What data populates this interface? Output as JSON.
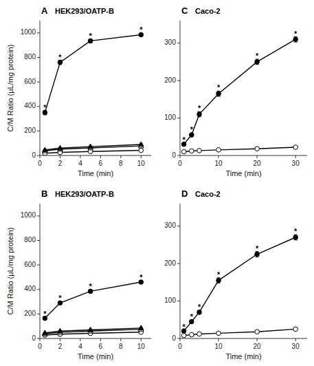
{
  "chart_data": [
    {
      "type": "line",
      "panel_label": "A",
      "title": "HEK293/OATP-B",
      "x": [
        0.5,
        2,
        5,
        10
      ],
      "series": [
        {
          "values": [
            18,
            25,
            32,
            42
          ],
          "errors": [
            3,
            3,
            3,
            3
          ],
          "color": "#000000",
          "marker": "open-circle",
          "line_style": "solid"
        },
        {
          "values": [
            38,
            52,
            62,
            78
          ],
          "errors": [
            4,
            4,
            4,
            4
          ],
          "color": "#000000",
          "marker": "open-triangle",
          "line_style": "solid"
        },
        {
          "values": [
            45,
            60,
            72,
            90
          ],
          "errors": [
            5,
            5,
            5,
            5
          ],
          "color": "#000000",
          "marker": "triangle",
          "line_style": "solid"
        },
        {
          "values": [
            350,
            760,
            935,
            985
          ],
          "errors": [
            18,
            18,
            15,
            12
          ],
          "color": "#000000",
          "marker": "circle",
          "line_style": "solid"
        }
      ],
      "annotations": [
        "*",
        "*",
        "*",
        "*"
      ],
      "xlim": [
        0,
        11
      ],
      "ylim": [
        0,
        1100
      ],
      "xticks": [
        0,
        2,
        4,
        6,
        8,
        10
      ],
      "yticks": [
        0,
        200,
        400,
        600,
        800,
        1000
      ],
      "xlabel": "Time (min)",
      "ylabel": "C/M Ratio (μL/mg protein)",
      "grid": false
    },
    {
      "type": "line",
      "panel_label": "B",
      "title": "HEK293/OATP-B",
      "x": [
        0.5,
        2,
        5,
        10
      ],
      "series": [
        {
          "values": [
            28,
            35,
            42,
            52
          ],
          "errors": [
            3,
            3,
            3,
            3
          ],
          "color": "#000000",
          "marker": "open-circle",
          "line_style": "solid"
        },
        {
          "values": [
            38,
            50,
            60,
            75
          ],
          "errors": [
            4,
            4,
            4,
            4
          ],
          "color": "#000000",
          "marker": "open-triangle",
          "line_style": "solid"
        },
        {
          "values": [
            45,
            60,
            70,
            85
          ],
          "errors": [
            5,
            5,
            5,
            5
          ],
          "color": "#000000",
          "marker": "triangle",
          "line_style": "solid"
        },
        {
          "values": [
            165,
            290,
            385,
            460
          ],
          "errors": [
            12,
            12,
            12,
            12
          ],
          "color": "#000000",
          "marker": "circle",
          "line_style": "solid"
        }
      ],
      "annotations": [
        "*",
        "*",
        "*",
        "*"
      ],
      "xlim": [
        0,
        11
      ],
      "ylim": [
        0,
        1100
      ],
      "xticks": [
        0,
        2,
        4,
        6,
        8,
        10
      ],
      "yticks": [
        0,
        200,
        400,
        600,
        800,
        1000
      ],
      "xlabel": "Time (min)",
      "ylabel": "C/M Ratio (μL/mg protein)",
      "grid": false
    },
    {
      "type": "line",
      "panel_label": "C",
      "title": "Caco-2",
      "x": [
        1,
        3,
        5,
        10,
        20,
        30
      ],
      "series": [
        {
          "values": [
            10,
            12,
            13,
            15,
            18,
            22
          ],
          "errors": [
            2,
            2,
            2,
            2,
            2,
            2
          ],
          "color": "#000000",
          "marker": "open-circle",
          "line_style": "solid"
        },
        {
          "values": [
            30,
            55,
            110,
            165,
            250,
            310
          ],
          "errors": [
            3,
            5,
            7,
            7,
            7,
            7
          ],
          "color": "#000000",
          "marker": "circle",
          "line_style": "solid"
        }
      ],
      "annotations": [
        "*",
        "*",
        "*",
        "*",
        "*",
        "*"
      ],
      "xlim": [
        0,
        33
      ],
      "ylim": [
        0,
        360
      ],
      "xticks": [
        0,
        10,
        20,
        30
      ],
      "yticks": [
        0,
        100,
        200,
        300
      ],
      "xlabel": "Time (min)",
      "grid": false
    },
    {
      "type": "line",
      "panel_label": "D",
      "title": "Caco-2",
      "x": [
        1,
        3,
        5,
        10,
        20,
        30
      ],
      "series": [
        {
          "values": [
            8,
            10,
            12,
            14,
            18,
            25
          ],
          "errors": [
            2,
            2,
            2,
            2,
            2,
            2
          ],
          "color": "#000000",
          "marker": "open-circle",
          "line_style": "solid"
        },
        {
          "values": [
            20,
            45,
            70,
            155,
            225,
            270
          ],
          "errors": [
            3,
            4,
            5,
            7,
            7,
            7
          ],
          "color": "#000000",
          "marker": "circle",
          "line_style": "solid"
        }
      ],
      "annotations": [
        "*",
        "*",
        "*",
        "*",
        "*",
        "*"
      ],
      "xlim": [
        0,
        33
      ],
      "ylim": [
        0,
        360
      ],
      "xticks": [
        0,
        10,
        20,
        30
      ],
      "yticks": [
        0,
        100,
        200,
        300
      ],
      "xlabel": "Time (min)",
      "grid": false
    }
  ]
}
